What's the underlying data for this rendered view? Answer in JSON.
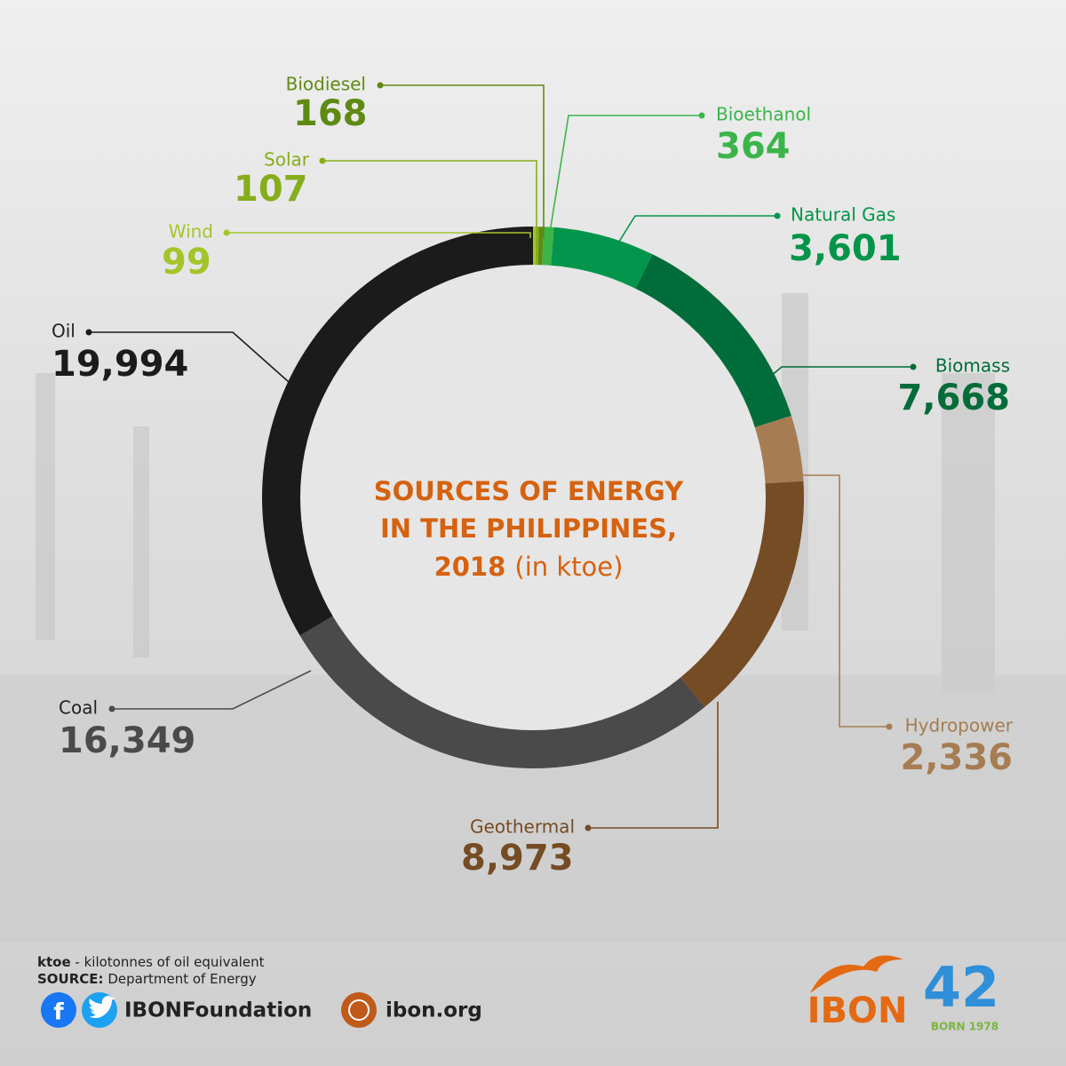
{
  "chart_data": {
    "type": "donut",
    "title_lines": [
      "SOURCES OF ENERGY",
      "IN THE PHILIPPINES,",
      "2018"
    ],
    "title_unit": "(in ktoe)",
    "categories": [
      "Wind",
      "Solar",
      "Biodiesel",
      "Bioethanol",
      "Natural Gas",
      "Biomass",
      "Hydropower",
      "Geothermal",
      "Coal",
      "Oil"
    ],
    "values": [
      99,
      107,
      168,
      364,
      3601,
      7668,
      2336,
      8973,
      16349,
      19994
    ],
    "value_labels": [
      "99",
      "107",
      "168",
      "364",
      "3,601",
      "7,668",
      "2,336",
      "8,973",
      "16,349",
      "19,994"
    ],
    "colors": [
      "#a3c52a",
      "#86ad1c",
      "#5e8a13",
      "#3bb54a",
      "#00954a",
      "#006c39",
      "#a67c52",
      "#754c24",
      "#4a4a4a",
      "#1b1b1b"
    ]
  },
  "footer": {
    "note_term": "ktoe",
    "note_text": "- kilotonnes of oil equivalent",
    "source_label": "SOURCE:",
    "source_text": "Department of Energy",
    "social": "IBONFoundation",
    "website": "ibon.org",
    "logo": "IBON",
    "anniversary": "42",
    "born": "BORN 1978"
  }
}
